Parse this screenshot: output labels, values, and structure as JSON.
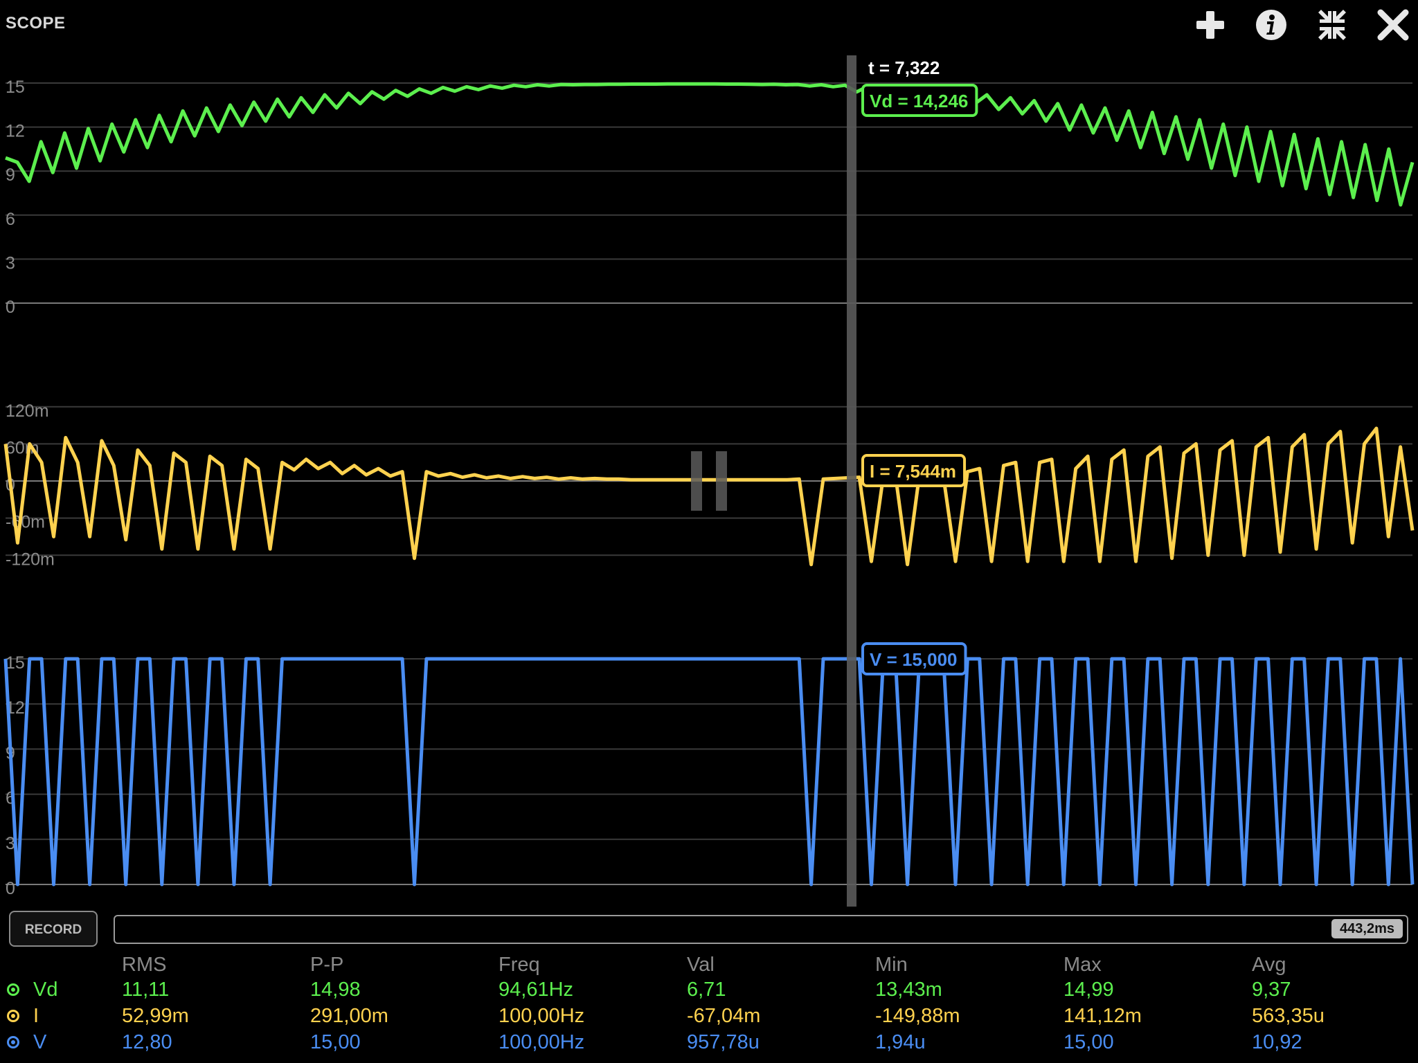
{
  "window": {
    "title": "SCOPE",
    "buttons": [
      {
        "id": "add",
        "icon": "plus-icon"
      },
      {
        "id": "info",
        "icon": "info-icon"
      },
      {
        "id": "collapse",
        "icon": "collapse-icon"
      },
      {
        "id": "close",
        "icon": "close-icon"
      }
    ]
  },
  "colors": {
    "vd": "#5cef4e",
    "i": "#ffd24f",
    "v": "#4a8df2",
    "grid": "#3a3a3a",
    "label": "#8c8c8c",
    "cursor": "#5a5a5a"
  },
  "cursor": {
    "time_label": "t = 7,322",
    "t": 7.322
  },
  "chart_data": [
    {
      "type": "line",
      "channel": "Vd",
      "ylim": [
        0,
        15
      ],
      "ytick_labels": [
        "15",
        "12",
        "9",
        "6",
        "3",
        "0"
      ],
      "ytick_values": [
        15,
        12,
        9,
        6,
        3,
        0
      ],
      "readout": "Vd = 14,246",
      "note_points": "estimated sawtooth envelope, see series values",
      "series": [
        {
          "values": [
            9.9,
            9.6,
            8.3,
            11.0,
            8.9,
            11.6,
            9.2,
            11.9,
            9.7,
            12.2,
            10.3,
            12.5,
            10.6,
            12.8,
            11.0,
            13.1,
            11.4,
            13.3,
            11.7,
            13.5,
            12.1,
            13.7,
            12.4,
            13.9,
            12.7,
            14.0,
            13.0,
            14.2,
            13.3,
            14.3,
            13.6,
            14.4,
            13.9,
            14.5,
            14.1,
            14.6,
            14.3,
            14.7,
            14.45,
            14.75,
            14.55,
            14.8,
            14.65,
            14.85,
            14.75,
            14.88,
            14.8,
            14.9,
            14.88,
            14.9,
            14.9,
            14.92,
            14.92,
            14.93,
            14.93,
            14.93,
            14.94,
            14.94,
            14.94,
            14.94,
            14.94,
            14.93,
            14.93,
            14.92,
            14.9,
            14.92,
            14.88,
            14.9,
            14.8,
            14.88,
            14.75,
            14.85,
            14.4,
            14.8,
            14.5,
            14.7,
            14.3,
            14.6,
            14.1,
            14.5,
            13.9,
            14.4,
            13.6,
            14.2,
            13.2,
            14.0,
            12.9,
            13.8,
            12.4,
            13.6,
            11.8,
            13.5,
            11.6,
            13.3,
            11.1,
            13.1,
            10.6,
            13.0,
            10.2,
            12.7,
            9.8,
            12.5,
            9.2,
            12.2,
            8.7,
            12.0,
            8.3,
            11.7,
            8.0,
            11.5,
            7.8,
            11.2,
            7.4,
            11.0,
            7.2,
            10.8,
            7.0,
            10.5,
            6.7,
            9.6
          ]
        }
      ]
    },
    {
      "type": "line",
      "channel": "I",
      "ylim": [
        -0.16,
        0.16
      ],
      "ytick_labels": [
        "120m",
        "60m",
        "0",
        "-60m",
        "-120m"
      ],
      "ytick_values": [
        0.12,
        0.06,
        0,
        -0.06,
        -0.12
      ],
      "readout": "I = 7,544m",
      "series": [
        {
          "values": [
            0.06,
            -0.1,
            0.06,
            0.03,
            -0.09,
            0.07,
            0.03,
            -0.09,
            0.065,
            0.025,
            -0.095,
            0.05,
            0.025,
            -0.11,
            0.045,
            0.03,
            -0.11,
            0.04,
            0.025,
            -0.11,
            0.035,
            0.02,
            -0.11,
            0.03,
            0.018,
            0.035,
            0.02,
            0.03,
            0.012,
            0.025,
            0.01,
            0.02,
            0.008,
            0.015,
            -0.125,
            0.015,
            0.008,
            0.012,
            0.006,
            0.01,
            0.005,
            0.008,
            0.004,
            0.007,
            0.004,
            0.006,
            0.003,
            0.005,
            0.003,
            0.004,
            0.003,
            0.003,
            0.002,
            0.002,
            0.002,
            0.002,
            0.002,
            0.002,
            0.002,
            0.002,
            0.002,
            0.002,
            0.002,
            0.002,
            0.002,
            0.002,
            0.003,
            -0.135,
            0.003,
            0.004,
            0.005,
            0.006,
            -0.13,
            0.008,
            0.01,
            -0.135,
            0.01,
            0.015,
            0.006,
            -0.13,
            0.015,
            0.02,
            -0.13,
            0.025,
            0.03,
            -0.13,
            0.03,
            0.035,
            -0.13,
            0.02,
            0.04,
            -0.13,
            0.035,
            0.05,
            -0.13,
            0.04,
            0.055,
            -0.125,
            0.045,
            0.06,
            -0.12,
            0.05,
            0.065,
            -0.12,
            0.055,
            0.07,
            -0.115,
            0.055,
            0.075,
            -0.11,
            0.06,
            0.08,
            -0.1,
            0.06,
            0.085,
            -0.09,
            0.055,
            -0.08
          ]
        }
      ]
    },
    {
      "type": "line",
      "channel": "V",
      "ylim": [
        0,
        15
      ],
      "ytick_labels": [
        "15",
        "12",
        "9",
        "6",
        "3",
        "0"
      ],
      "ytick_values": [
        15,
        12,
        9,
        6,
        3,
        0
      ],
      "readout": "V = 15,000",
      "series": [
        {
          "values": [
            15,
            0,
            15,
            15,
            0,
            15,
            15,
            0,
            15,
            15,
            0,
            15,
            15,
            0,
            15,
            15,
            0,
            15,
            15,
            0,
            15,
            15,
            0,
            15,
            15,
            15,
            15,
            15,
            15,
            15,
            15,
            15,
            15,
            15,
            0,
            15,
            15,
            15,
            15,
            15,
            15,
            15,
            15,
            15,
            15,
            15,
            15,
            15,
            15,
            15,
            15,
            15,
            15,
            15,
            15,
            15,
            15,
            15,
            15,
            15,
            15,
            15,
            15,
            15,
            15,
            15,
            15,
            0,
            15,
            15,
            15,
            15,
            0,
            15,
            15,
            0,
            15,
            15,
            15,
            0,
            15,
            15,
            0,
            15,
            15,
            0,
            15,
            15,
            0,
            15,
            15,
            0,
            15,
            15,
            0,
            15,
            15,
            0,
            15,
            15,
            0,
            15,
            15,
            0,
            15,
            15,
            0,
            15,
            15,
            0,
            15,
            15,
            0,
            15,
            15,
            0,
            15,
            0
          ]
        }
      ]
    }
  ],
  "controls": {
    "record_label": "RECORD",
    "timeline_duration": "443,2ms"
  },
  "stats": {
    "headers": [
      "RMS",
      "P-P",
      "Freq",
      "Val",
      "Min",
      "Max",
      "Avg"
    ],
    "rows": [
      {
        "name": "Vd",
        "values": [
          "11,11",
          "14,98",
          "94,61Hz",
          "6,71",
          "13,43m",
          "14,99",
          "9,37"
        ]
      },
      {
        "name": "I",
        "values": [
          "52,99m",
          "291,00m",
          "100,00Hz",
          "-67,04m",
          "-149,88m",
          "141,12m",
          "563,35u"
        ]
      },
      {
        "name": "V",
        "values": [
          "12,80",
          "15,00",
          "100,00Hz",
          "957,78u",
          "1,94u",
          "15,00",
          "10,92"
        ]
      }
    ]
  }
}
